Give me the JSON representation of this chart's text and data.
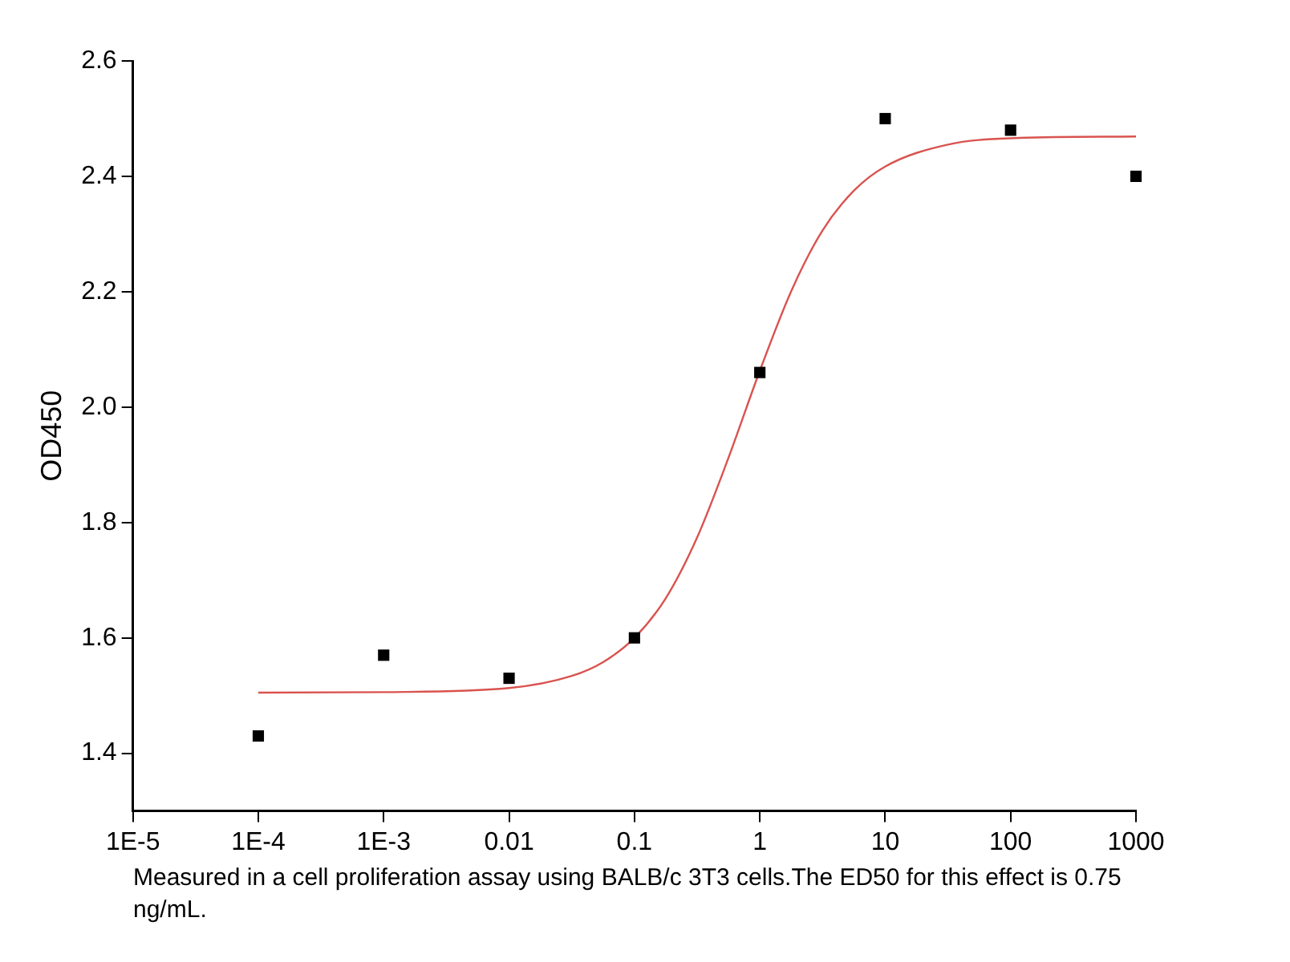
{
  "chart_data": {
    "type": "scatter",
    "ylabel": "OD450",
    "log": "x",
    "grid": false,
    "legend": false,
    "xlim": [
      1e-05,
      1000
    ],
    "xticks": [
      {
        "value": 1e-05,
        "label": "1E-5"
      },
      {
        "value": 0.0001,
        "label": "1E-4"
      },
      {
        "value": 0.001,
        "label": "1E-3"
      },
      0.01,
      0.1,
      1,
      10,
      100,
      1000
    ],
    "ylim": [
      1.3,
      2.6
    ],
    "yticks": [
      1.4,
      1.6,
      1.8,
      {
        "value": 2,
        "label": "2.0"
      },
      2.2,
      2.4,
      2.6
    ],
    "series": [
      {
        "marker": "square",
        "color": "#000000",
        "x": [
          0.0001,
          0.001,
          0.01,
          0.1,
          1,
          10,
          100,
          1000
        ],
        "values": [
          1.43,
          1.57,
          1.53,
          1.6,
          2.06,
          2.5,
          2.48,
          2.4
        ]
      },
      {
        "type": "line",
        "color": "#d9534f",
        "x": [
          0.0001,
          0.001,
          0.01,
          0.0316,
          0.0562,
          0.1,
          0.178,
          0.316,
          0.562,
          1,
          1.78,
          3.16,
          5.62,
          10,
          31.6,
          100,
          1000
        ],
        "values": [
          1.505,
          1.506,
          1.513,
          1.534,
          1.558,
          1.6,
          1.669,
          1.774,
          1.912,
          2.063,
          2.201,
          2.306,
          2.375,
          2.417,
          2.455,
          2.466,
          2.469
        ]
      }
    ],
    "annotations": [
      "Measured in a cell proliferation assay using BALB/c 3T3 cells.The ED50 for this effect is 0.75 ng/mL."
    ]
  }
}
